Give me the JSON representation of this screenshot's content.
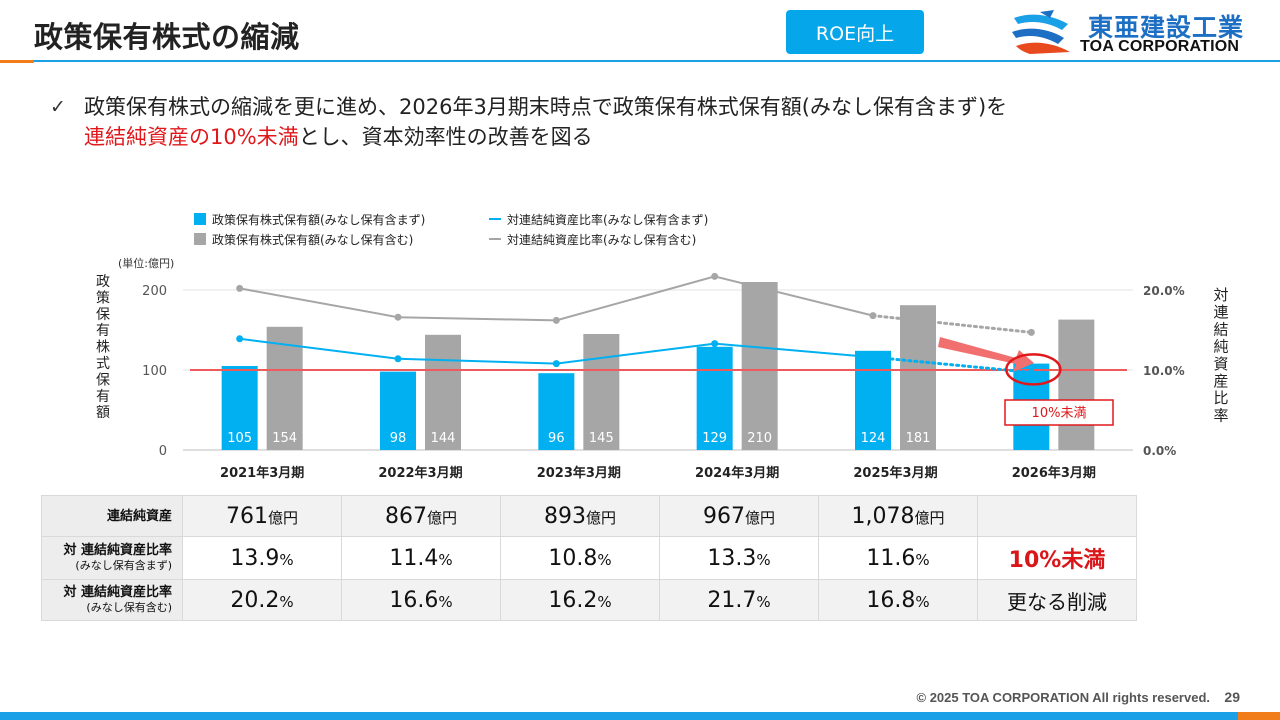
{
  "header": {
    "title": "政策保有株式の縮減",
    "badge": "ROE向上",
    "logo_jp": "東亜建設工業",
    "logo_en": "TOA CORPORATION"
  },
  "lead": {
    "bullet": "✓",
    "text_before": "政策保有株式の縮減を更に進め、2026年3月期末時点で政策保有株式保有額(みなし保有含まず)を",
    "text_red": "連結純資産の10%未満",
    "text_after": "とし、資本効率性の改善を図る"
  },
  "chart_data": {
    "type": "bar",
    "categories": [
      "2021年3月期",
      "2022年3月期",
      "2023年3月期",
      "2024年3月期",
      "2025年3月期",
      "2026年3月期"
    ],
    "series": [
      {
        "name": "政策保有株式保有額(みなし保有含まず)",
        "kind": "bar",
        "axis": "left",
        "color": "#00b0f0",
        "values": [
          105,
          98,
          96,
          129,
          124,
          108
        ],
        "labels": [
          "105",
          "98",
          "96",
          "129",
          "124",
          ""
        ]
      },
      {
        "name": "政策保有株式保有額(みなし保有含む)",
        "kind": "bar",
        "axis": "left",
        "color": "#a6a6a6",
        "values": [
          154,
          144,
          145,
          210,
          181,
          163
        ],
        "labels": [
          "154",
          "144",
          "145",
          "210",
          "181",
          ""
        ]
      },
      {
        "name": "対連結純資産比率(みなし保有含まず)",
        "kind": "line",
        "axis": "right",
        "color": "#00b0f0",
        "values": [
          13.9,
          11.4,
          10.8,
          13.3,
          11.6,
          9.7
        ]
      },
      {
        "name": "対連結純資産比率(みなし保有含む)",
        "kind": "line",
        "axis": "right",
        "color": "#a6a6a6",
        "values": [
          20.2,
          16.6,
          16.2,
          21.7,
          16.8,
          14.7
        ]
      }
    ],
    "forecast_from_index": 4,
    "unit_label": "(単位:億円)",
    "ylabel": "政策保有株式保有額",
    "y2label": "対連結純資産比率",
    "ylim": [
      0,
      200
    ],
    "yticks": [
      "0",
      "100",
      "200"
    ],
    "y2lim": [
      0,
      20
    ],
    "y2ticks": [
      "0.0%",
      "10.0%",
      "20.0%"
    ],
    "reference_line": {
      "value": 10,
      "axis": "right",
      "color": "#f05a5a"
    },
    "annotation": "10%未満",
    "legend_position": "top"
  },
  "table": {
    "rows": [
      {
        "head": "連結純資産",
        "sub": "",
        "unit": "億円",
        "cells": [
          "761",
          "867",
          "893",
          "967",
          "1,078",
          ""
        ]
      },
      {
        "head": "対 連結純資産比率",
        "sub": "(みなし保有含まず)",
        "unit": "%",
        "cells": [
          "13.9",
          "11.4",
          "10.8",
          "13.3",
          "11.6",
          "10%未満"
        ]
      },
      {
        "head": "対 連結純資産比率",
        "sub": "(みなし保有含む)",
        "unit": "%",
        "cells": [
          "20.2",
          "16.6",
          "16.2",
          "21.7",
          "16.8",
          "更なる削減"
        ]
      }
    ]
  },
  "footer": {
    "copyright": "© 2025 TOA CORPORATION  All rights reserved.",
    "page": "29"
  },
  "colors": {
    "accent_blue": "#06a6ea",
    "accent_orange": "#f07d1a",
    "highlight_red": "#e0181b"
  }
}
